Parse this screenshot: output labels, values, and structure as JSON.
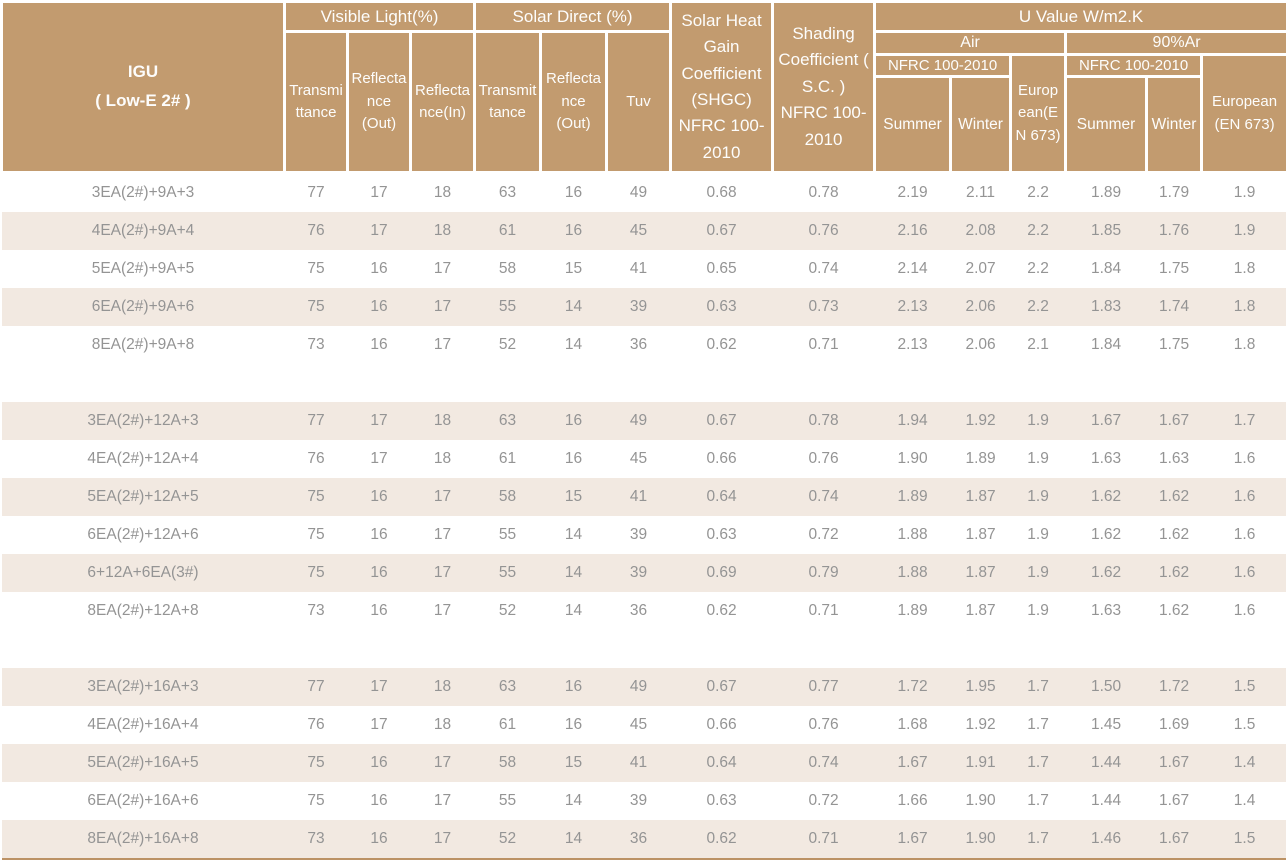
{
  "header": {
    "igu_line1": "IGU",
    "igu_line2": "( Low-E 2# )",
    "visible_light": "Visible Light(%)",
    "solar_direct": "Solar Direct (%)",
    "shgc": "Solar Heat Gain Coefficient (SHGC) NFRC 100-2010",
    "shading": "Shading Coefficient ( S.C. ) NFRC 100-2010",
    "u_value": "U Value W/m2.K",
    "air": "Air",
    "argon": "90%Ar",
    "nfrc": "NFRC 100-2010",
    "european_air": "European(EN 673)",
    "european_argon": "European (EN 673)",
    "summer": "Summer",
    "winter": "Winter",
    "sub_columns": [
      "Transmittance",
      "Reflectance (Out)",
      "Reflectance(In)",
      "Transmittance",
      "Reflectance (Out)",
      "Tuv"
    ]
  },
  "colors": {
    "header_bg": "#C29B6F",
    "stripe_bg": "#F2E9E1",
    "body_text": "#949494",
    "header_text": "#FFFFFF",
    "bottom_rule": "#BC9265"
  },
  "groups": [
    {
      "rows": [
        {
          "label": "3EA(2#)+9A+3",
          "values": [
            "77",
            "17",
            "18",
            "63",
            "16",
            "49",
            "0.68",
            "0.78",
            "2.19",
            "2.11",
            "2.2",
            "1.89",
            "1.79",
            "1.9"
          ]
        },
        {
          "label": "4EA(2#)+9A+4",
          "values": [
            "76",
            "17",
            "18",
            "61",
            "16",
            "45",
            "0.67",
            "0.76",
            "2.16",
            "2.08",
            "2.2",
            "1.85",
            "1.76",
            "1.9"
          ]
        },
        {
          "label": "5EA(2#)+9A+5",
          "values": [
            "75",
            "16",
            "17",
            "58",
            "15",
            "41",
            "0.65",
            "0.74",
            "2.14",
            "2.07",
            "2.2",
            "1.84",
            "1.75",
            "1.8"
          ]
        },
        {
          "label": "6EA(2#)+9A+6",
          "values": [
            "75",
            "16",
            "17",
            "55",
            "14",
            "39",
            "0.63",
            "0.73",
            "2.13",
            "2.06",
            "2.2",
            "1.83",
            "1.74",
            "1.8"
          ]
        },
        {
          "label": "8EA(2#)+9A+8",
          "values": [
            "73",
            "16",
            "17",
            "52",
            "14",
            "36",
            "0.62",
            "0.71",
            "2.13",
            "2.06",
            "2.1",
            "1.84",
            "1.75",
            "1.8"
          ]
        }
      ]
    },
    {
      "rows": [
        {
          "label": "3EA(2#)+12A+3",
          "values": [
            "77",
            "17",
            "18",
            "63",
            "16",
            "49",
            "0.67",
            "0.78",
            "1.94",
            "1.92",
            "1.9",
            "1.67",
            "1.67",
            "1.7"
          ]
        },
        {
          "label": "4EA(2#)+12A+4",
          "values": [
            "76",
            "17",
            "18",
            "61",
            "16",
            "45",
            "0.66",
            "0.76",
            "1.90",
            "1.89",
            "1.9",
            "1.63",
            "1.63",
            "1.6"
          ]
        },
        {
          "label": "5EA(2#)+12A+5",
          "values": [
            "75",
            "16",
            "17",
            "58",
            "15",
            "41",
            "0.64",
            "0.74",
            "1.89",
            "1.87",
            "1.9",
            "1.62",
            "1.62",
            "1.6"
          ]
        },
        {
          "label": "6EA(2#)+12A+6",
          "values": [
            "75",
            "16",
            "17",
            "55",
            "14",
            "39",
            "0.63",
            "0.72",
            "1.88",
            "1.87",
            "1.9",
            "1.62",
            "1.62",
            "1.6"
          ]
        },
        {
          "label": "6+12A+6EA(3#)",
          "values": [
            "75",
            "16",
            "17",
            "55",
            "14",
            "39",
            "0.69",
            "0.79",
            "1.88",
            "1.87",
            "1.9",
            "1.62",
            "1.62",
            "1.6"
          ]
        },
        {
          "label": "8EA(2#)+12A+8",
          "values": [
            "73",
            "16",
            "17",
            "52",
            "14",
            "36",
            "0.62",
            "0.71",
            "1.89",
            "1.87",
            "1.9",
            "1.63",
            "1.62",
            "1.6"
          ]
        }
      ]
    },
    {
      "rows": [
        {
          "label": "3EA(2#)+16A+3",
          "values": [
            "77",
            "17",
            "18",
            "63",
            "16",
            "49",
            "0.67",
            "0.77",
            "1.72",
            "1.95",
            "1.7",
            "1.50",
            "1.72",
            "1.5"
          ]
        },
        {
          "label": "4EA(2#)+16A+4",
          "values": [
            "76",
            "17",
            "18",
            "61",
            "16",
            "45",
            "0.66",
            "0.76",
            "1.68",
            "1.92",
            "1.7",
            "1.45",
            "1.69",
            "1.5"
          ]
        },
        {
          "label": "5EA(2#)+16A+5",
          "values": [
            "75",
            "16",
            "17",
            "58",
            "15",
            "41",
            "0.64",
            "0.74",
            "1.67",
            "1.91",
            "1.7",
            "1.44",
            "1.67",
            "1.4"
          ]
        },
        {
          "label": "6EA(2#)+16A+6",
          "values": [
            "75",
            "16",
            "17",
            "55",
            "14",
            "39",
            "0.63",
            "0.72",
            "1.66",
            "1.90",
            "1.7",
            "1.44",
            "1.67",
            "1.4"
          ]
        },
        {
          "label": "8EA(2#)+16A+8",
          "values": [
            "73",
            "16",
            "17",
            "52",
            "14",
            "36",
            "0.62",
            "0.71",
            "1.67",
            "1.90",
            "1.7",
            "1.46",
            "1.67",
            "1.5"
          ]
        }
      ]
    }
  ]
}
